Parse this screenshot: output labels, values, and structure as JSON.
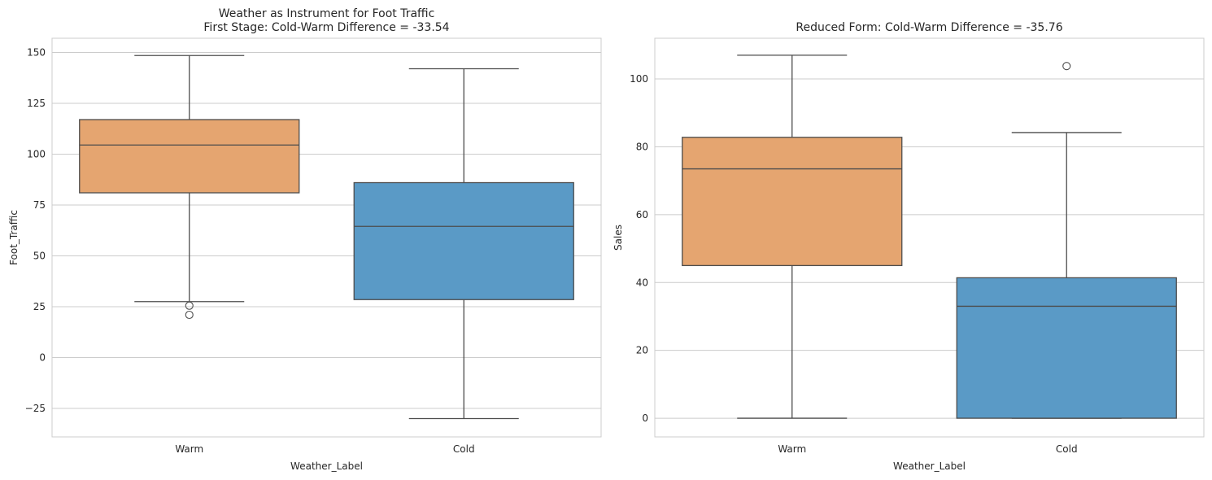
{
  "chart_data": [
    {
      "type": "box",
      "title_lines": [
        "Weather as Instrument for Foot Traffic",
        "First Stage: Cold-Warm Difference = -33.54"
      ],
      "xlabel": "Weather_Label",
      "ylabel": "Foot_Traffic",
      "categories": [
        "Warm",
        "Cold"
      ],
      "ylim": [
        -39,
        157
      ],
      "yticks": [
        -25,
        0,
        25,
        50,
        75,
        100,
        125,
        150
      ],
      "ytick_labels": [
        "−25",
        "0",
        "25",
        "50",
        "75",
        "100",
        "125",
        "150"
      ],
      "grid": "horizontal",
      "colors": [
        "#e5a570",
        "#5a9ac6"
      ],
      "boxes": [
        {
          "category": "Warm",
          "whisker_low": 27.5,
          "q1": 81,
          "median": 104.5,
          "q3": 117,
          "whisker_high": 148.5,
          "outliers": [
            25.5,
            21
          ]
        },
        {
          "category": "Cold",
          "whisker_low": -30,
          "q1": 28.5,
          "median": 64.5,
          "q3": 86,
          "whisker_high": 142,
          "outliers": []
        }
      ]
    },
    {
      "type": "box",
      "title_lines": [
        "Reduced Form: Cold-Warm Difference = -35.76"
      ],
      "xlabel": "Weather_Label",
      "ylabel": "Sales",
      "categories": [
        "Warm",
        "Cold"
      ],
      "ylim": [
        -5.5,
        112
      ],
      "yticks": [
        0,
        20,
        40,
        60,
        80,
        100
      ],
      "ytick_labels": [
        "0",
        "20",
        "40",
        "60",
        "80",
        "100"
      ],
      "grid": "horizontal",
      "colors": [
        "#e5a570",
        "#5a9ac6"
      ],
      "boxes": [
        {
          "category": "Warm",
          "whisker_low": 0,
          "q1": 45,
          "median": 73.5,
          "q3": 82.8,
          "whisker_high": 107,
          "outliers": []
        },
        {
          "category": "Cold",
          "whisker_low": 0,
          "q1": 0,
          "median": 33,
          "q3": 41.4,
          "whisker_high": 84.2,
          "outliers": [
            103.8
          ]
        }
      ]
    }
  ]
}
